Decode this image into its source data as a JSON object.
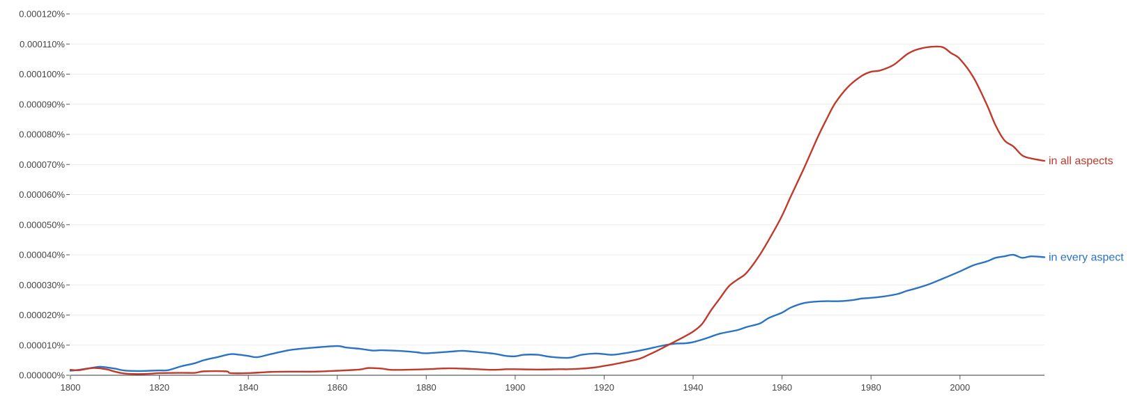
{
  "chart_data": {
    "type": "line",
    "title": "",
    "xlabel": "",
    "ylabel": "",
    "xlim": [
      1800,
      2019
    ],
    "ylim": [
      0,
      0.00012
    ],
    "grid": true,
    "yticks": [
      {
        "value": 0,
        "label": "0.000000%"
      },
      {
        "value": 1e-05,
        "label": "0.000010%"
      },
      {
        "value": 2e-05,
        "label": "0.000020%"
      },
      {
        "value": 3e-05,
        "label": "0.000030%"
      },
      {
        "value": 4e-05,
        "label": "0.000040%"
      },
      {
        "value": 5e-05,
        "label": "0.000050%"
      },
      {
        "value": 6e-05,
        "label": "0.000060%"
      },
      {
        "value": 7e-05,
        "label": "0.000070%"
      },
      {
        "value": 8e-05,
        "label": "0.000080%"
      },
      {
        "value": 9e-05,
        "label": "0.000090%"
      },
      {
        "value": 0.0001,
        "label": "0.000100%"
      },
      {
        "value": 0.00011,
        "label": "0.000110%"
      },
      {
        "value": 0.00012,
        "label": "0.000120%"
      }
    ],
    "xticks": [
      {
        "value": 1800,
        "label": "1800"
      },
      {
        "value": 1820,
        "label": "1820"
      },
      {
        "value": 1840,
        "label": "1840"
      },
      {
        "value": 1860,
        "label": "1860"
      },
      {
        "value": 1880,
        "label": "1880"
      },
      {
        "value": 1900,
        "label": "1900"
      },
      {
        "value": 1920,
        "label": "1920"
      },
      {
        "value": 1940,
        "label": "1940"
      },
      {
        "value": 1960,
        "label": "1960"
      },
      {
        "value": 1980,
        "label": "1980"
      },
      {
        "value": 2000,
        "label": "2000"
      }
    ],
    "series": [
      {
        "name": "in all aspects",
        "color": "#c0392b",
        "points": [
          [
            1800,
            1.8e-06
          ],
          [
            1802,
            1.7e-06
          ],
          [
            1805,
            2.4e-06
          ],
          [
            1808,
            2e-06
          ],
          [
            1810,
            1.2e-06
          ],
          [
            1812,
            6e-07
          ],
          [
            1815,
            4e-07
          ],
          [
            1818,
            5e-07
          ],
          [
            1820,
            7e-07
          ],
          [
            1825,
            8e-07
          ],
          [
            1828,
            8e-07
          ],
          [
            1830,
            1.3e-06
          ],
          [
            1835,
            1.3e-06
          ],
          [
            1836,
            7e-07
          ],
          [
            1840,
            7e-07
          ],
          [
            1845,
            1.1e-06
          ],
          [
            1850,
            1.2e-06
          ],
          [
            1855,
            1.2e-06
          ],
          [
            1860,
            1.5e-06
          ],
          [
            1865,
            1.9e-06
          ],
          [
            1867,
            2.4e-06
          ],
          [
            1870,
            2.2e-06
          ],
          [
            1872,
            1.8e-06
          ],
          [
            1875,
            1.8e-06
          ],
          [
            1880,
            2e-06
          ],
          [
            1885,
            2.3e-06
          ],
          [
            1890,
            2.1e-06
          ],
          [
            1895,
            1.8e-06
          ],
          [
            1898,
            2e-06
          ],
          [
            1900,
            2e-06
          ],
          [
            1905,
            1.9e-06
          ],
          [
            1910,
            2e-06
          ],
          [
            1912,
            2e-06
          ],
          [
            1915,
            2.2e-06
          ],
          [
            1918,
            2.6e-06
          ],
          [
            1920,
            3.1e-06
          ],
          [
            1922,
            3.6e-06
          ],
          [
            1925,
            4.5e-06
          ],
          [
            1928,
            5.5e-06
          ],
          [
            1930,
            6.8e-06
          ],
          [
            1932,
            8.2e-06
          ],
          [
            1935,
            1.05e-05
          ],
          [
            1938,
            1.28e-05
          ],
          [
            1940,
            1.45e-05
          ],
          [
            1942,
            1.7e-05
          ],
          [
            1944,
            2.15e-05
          ],
          [
            1946,
            2.55e-05
          ],
          [
            1948,
            2.95e-05
          ],
          [
            1950,
            3.18e-05
          ],
          [
            1952,
            3.4e-05
          ],
          [
            1955,
            4e-05
          ],
          [
            1958,
            4.75e-05
          ],
          [
            1960,
            5.3e-05
          ],
          [
            1962,
            5.95e-05
          ],
          [
            1965,
            6.9e-05
          ],
          [
            1968,
            7.9e-05
          ],
          [
            1970,
            8.5e-05
          ],
          [
            1972,
            9.05e-05
          ],
          [
            1975,
            9.6e-05
          ],
          [
            1978,
            9.95e-05
          ],
          [
            1980,
            0.0001008
          ],
          [
            1982,
            0.0001012
          ],
          [
            1985,
            0.000103
          ],
          [
            1988,
            0.0001065
          ],
          [
            1990,
            0.000108
          ],
          [
            1993,
            0.000109
          ],
          [
            1996,
            0.000109
          ],
          [
            1998,
            0.000107
          ],
          [
            2000,
            0.000105
          ],
          [
            2003,
            9.9e-05
          ],
          [
            2006,
            9e-05
          ],
          [
            2008,
            8.3e-05
          ],
          [
            2010,
            7.8e-05
          ],
          [
            2012,
            7.6e-05
          ],
          [
            2014,
            7.3e-05
          ],
          [
            2016,
            7.2e-05
          ],
          [
            2019,
            7.12e-05
          ]
        ]
      },
      {
        "name": "in every aspect",
        "color": "#2a72c3",
        "points": [
          [
            1800,
            1.5e-06
          ],
          [
            1802,
            1.8e-06
          ],
          [
            1805,
            2.5e-06
          ],
          [
            1807,
            2.8e-06
          ],
          [
            1810,
            2.2e-06
          ],
          [
            1812,
            1.6e-06
          ],
          [
            1815,
            1.4e-06
          ],
          [
            1818,
            1.5e-06
          ],
          [
            1820,
            1.6e-06
          ],
          [
            1822,
            1.7e-06
          ],
          [
            1825,
            3e-06
          ],
          [
            1828,
            4e-06
          ],
          [
            1830,
            5e-06
          ],
          [
            1833,
            6e-06
          ],
          [
            1836,
            7e-06
          ],
          [
            1838,
            6.8e-06
          ],
          [
            1840,
            6.4e-06
          ],
          [
            1842,
            6e-06
          ],
          [
            1845,
            7e-06
          ],
          [
            1848,
            8e-06
          ],
          [
            1850,
            8.5e-06
          ],
          [
            1855,
            9.2e-06
          ],
          [
            1860,
            9.7e-06
          ],
          [
            1862,
            9.2e-06
          ],
          [
            1865,
            8.8e-06
          ],
          [
            1868,
            8.2e-06
          ],
          [
            1870,
            8.3e-06
          ],
          [
            1875,
            8e-06
          ],
          [
            1878,
            7.6e-06
          ],
          [
            1880,
            7.3e-06
          ],
          [
            1885,
            7.8e-06
          ],
          [
            1888,
            8.1e-06
          ],
          [
            1890,
            7.9e-06
          ],
          [
            1895,
            7.2e-06
          ],
          [
            1898,
            6.4e-06
          ],
          [
            1900,
            6.3e-06
          ],
          [
            1902,
            6.8e-06
          ],
          [
            1905,
            6.8e-06
          ],
          [
            1908,
            6.1e-06
          ],
          [
            1912,
            5.8e-06
          ],
          [
            1915,
            6.8e-06
          ],
          [
            1918,
            7.2e-06
          ],
          [
            1920,
            7e-06
          ],
          [
            1922,
            6.8e-06
          ],
          [
            1925,
            7.4e-06
          ],
          [
            1928,
            8.2e-06
          ],
          [
            1930,
            8.8e-06
          ],
          [
            1933,
            9.8e-06
          ],
          [
            1936,
            1.05e-05
          ],
          [
            1938,
            1.06e-05
          ],
          [
            1940,
            1.1e-05
          ],
          [
            1943,
            1.23e-05
          ],
          [
            1946,
            1.38e-05
          ],
          [
            1950,
            1.5e-05
          ],
          [
            1952,
            1.6e-05
          ],
          [
            1955,
            1.72e-05
          ],
          [
            1957,
            1.9e-05
          ],
          [
            1960,
            2.08e-05
          ],
          [
            1962,
            2.25e-05
          ],
          [
            1965,
            2.4e-05
          ],
          [
            1968,
            2.45e-05
          ],
          [
            1970,
            2.46e-05
          ],
          [
            1973,
            2.46e-05
          ],
          [
            1976,
            2.5e-05
          ],
          [
            1978,
            2.55e-05
          ],
          [
            1980,
            2.57e-05
          ],
          [
            1983,
            2.62e-05
          ],
          [
            1986,
            2.7e-05
          ],
          [
            1988,
            2.8e-05
          ],
          [
            1990,
            2.88e-05
          ],
          [
            1993,
            3.02e-05
          ],
          [
            1996,
            3.2e-05
          ],
          [
            2000,
            3.45e-05
          ],
          [
            2003,
            3.65e-05
          ],
          [
            2006,
            3.78e-05
          ],
          [
            2008,
            3.9e-05
          ],
          [
            2010,
            3.95e-05
          ],
          [
            2012,
            4e-05
          ],
          [
            2014,
            3.9e-05
          ],
          [
            2016,
            3.95e-05
          ],
          [
            2019,
            3.92e-05
          ]
        ]
      }
    ]
  }
}
